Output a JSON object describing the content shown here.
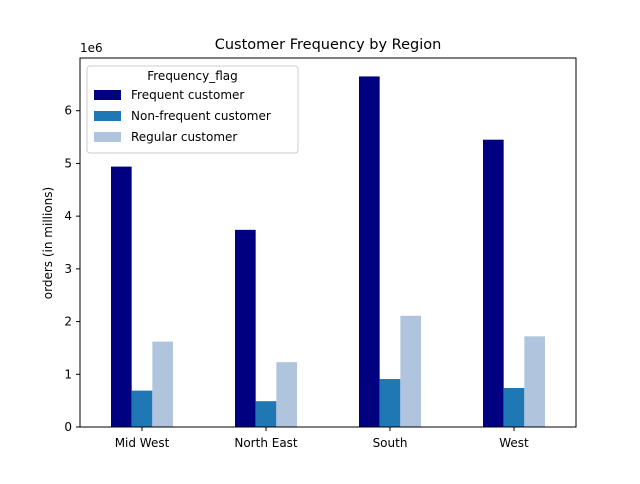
{
  "chart_data": {
    "type": "bar",
    "title": "Customer Frequency by Region",
    "xlabel": "",
    "ylabel": "orders (in millions)",
    "y_offset_label": "1e6",
    "categories": [
      "Mid West",
      "North East",
      "South",
      "West"
    ],
    "ylim": [
      0,
      7000000
    ],
    "yticks": [
      0,
      1000000,
      2000000,
      3000000,
      4000000,
      5000000,
      6000000
    ],
    "ytick_labels": [
      "0",
      "1",
      "2",
      "3",
      "4",
      "5",
      "6"
    ],
    "grid": false,
    "legend": {
      "title": "Frequency_flag",
      "placement": "top-left"
    },
    "series": [
      {
        "name": "Frequent customer",
        "color": "#000080",
        "values": [
          4940000,
          3740000,
          6650000,
          5450000
        ]
      },
      {
        "name": "Non-frequent customer",
        "color": "#1f77b4",
        "values": [
          690000,
          490000,
          910000,
          740000
        ]
      },
      {
        "name": "Regular customer",
        "color": "#b0c4de",
        "values": [
          1620000,
          1230000,
          2110000,
          1720000
        ]
      }
    ]
  }
}
